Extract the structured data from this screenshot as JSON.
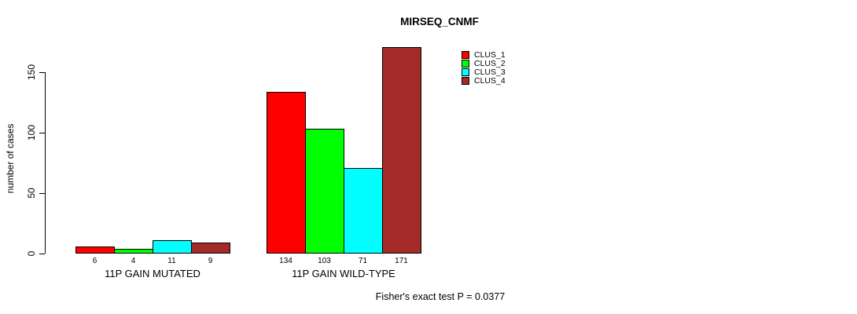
{
  "title": "MIRSEQ_CNMF",
  "chart_data": {
    "type": "bar",
    "grouped": true,
    "categories": [
      "11P GAIN MUTATED",
      "11P GAIN WILD-TYPE"
    ],
    "series": [
      {
        "name": "CLUS_1",
        "color": "#FF0000",
        "values": [
          6,
          134
        ]
      },
      {
        "name": "CLUS_2",
        "color": "#00FF00",
        "values": [
          4,
          103
        ]
      },
      {
        "name": "CLUS_3",
        "color": "#00FFFF",
        "values": [
          11,
          71
        ]
      },
      {
        "name": "CLUS_4",
        "color": "#A52A2A",
        "values": [
          9,
          171
        ]
      }
    ],
    "bar_labels": [
      [
        6,
        4,
        11,
        9
      ],
      [
        134,
        103,
        71,
        171
      ]
    ],
    "ylabel": "number of cases",
    "yticks": [
      0,
      50,
      100,
      150
    ],
    "ylim": [
      0,
      150
    ],
    "grid": false,
    "legend_position": "top-right",
    "annotation": "Fisher's exact test P = 0.0377",
    "bar_border_color": "#000000",
    "axis_color": "#000000"
  }
}
